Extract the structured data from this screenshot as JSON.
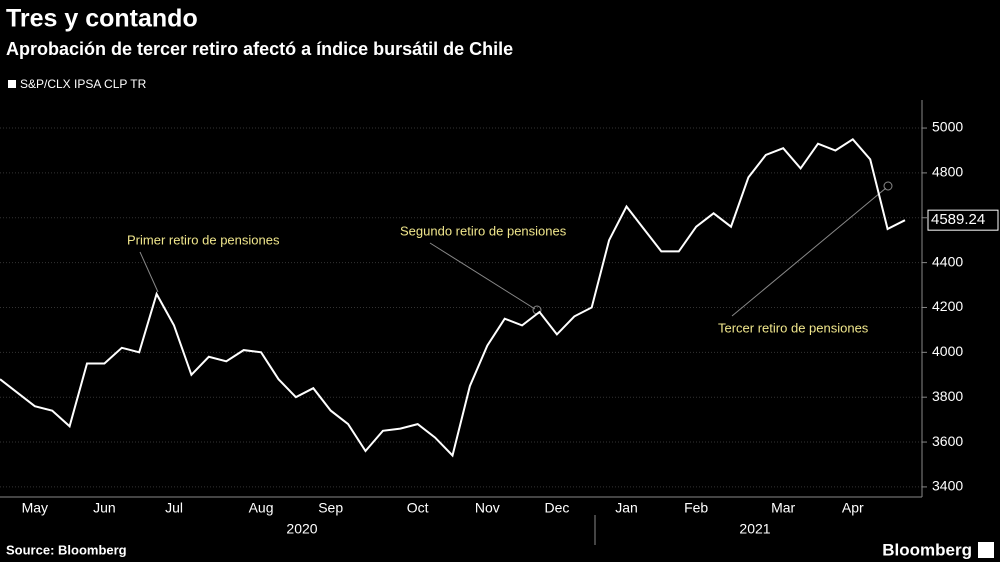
{
  "chart_data": {
    "type": "line",
    "title": "Tres y contando",
    "subtitle": "Aprobación de tercer retiro afectó a índice bursátil de Chile",
    "source": "Source: Bloomberg",
    "brand": "Bloomberg",
    "years": [
      "2020",
      "2021"
    ],
    "annotations": [
      "Primer retiro de pensiones",
      "Segundo retiro de pensiones",
      "Tercer retiro de pensiones"
    ],
    "categories": [
      null,
      null,
      "May",
      null,
      null,
      null,
      "Jun",
      null,
      null,
      null,
      "Jul",
      null,
      null,
      null,
      null,
      "Aug",
      null,
      null,
      null,
      "Sep",
      null,
      null,
      null,
      null,
      "Oct",
      null,
      null,
      null,
      "Nov",
      null,
      null,
      null,
      "Dec",
      null,
      null,
      null,
      "Jan",
      null,
      null,
      null,
      "Feb",
      null,
      null,
      null,
      null,
      "Mar",
      null,
      null,
      null,
      "Apr",
      null,
      null,
      null
    ],
    "series": [
      {
        "name": "S&P/CLX IPSA CLP TR",
        "color": "#ffffff",
        "values": [
          3880,
          3820,
          3760,
          3740,
          3670,
          3950,
          3950,
          4020,
          4000,
          4260,
          4120,
          3900,
          3980,
          3960,
          4010,
          4000,
          3880,
          3800,
          3840,
          3740,
          3680,
          3560,
          3650,
          3660,
          3680,
          3620,
          3540,
          3850,
          4030,
          4150,
          4120,
          4180,
          4080,
          4160,
          4200,
          4500,
          4650,
          4550,
          4450,
          4450,
          4560,
          4620,
          4560,
          4780,
          4880,
          4910,
          4820,
          4930,
          4900,
          4950,
          4860,
          4550,
          4589.24
        ]
      }
    ],
    "ylim": [
      3355,
      5125
    ],
    "yticks": [
      3400,
      3600,
      3800,
      4000,
      4200,
      4400,
      4600,
      4800,
      5000
    ],
    "grid": true
  }
}
